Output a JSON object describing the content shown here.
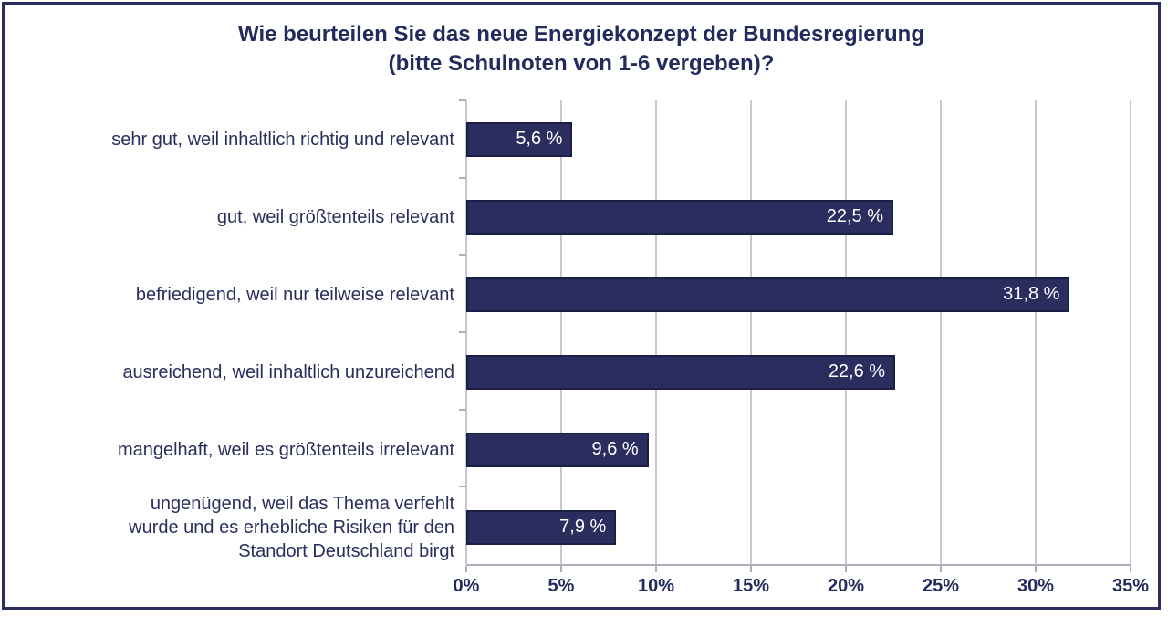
{
  "frame": {
    "border_color": "#2A2D5E",
    "background": "#FFFFFF"
  },
  "chart_data": {
    "type": "bar",
    "orientation": "horizontal",
    "title": "Wie beurteilen Sie das neue Energiekonzept der Bundesregierung (bitte Schulnoten von 1-6 vergeben)?",
    "title_lines": [
      "Wie beurteilen Sie das neue Energiekonzept der Bundesregierung",
      "(bitte Schulnoten von 1-6 vergeben)?"
    ],
    "categories": [
      "sehr gut, weil inhaltlich richtig und relevant",
      "gut, weil größtenteils relevant",
      "befriedigend, weil nur teilweise relevant",
      "ausreichend, weil inhaltlich unzureichend",
      "mangelhaft, weil es größtenteils irrelevant",
      "ungenügend, weil das Thema verfehlt\nwurde und es erhebliche Risiken für den\nStandort Deutschland birgt"
    ],
    "values": [
      5.6,
      22.5,
      31.8,
      22.6,
      9.6,
      7.9
    ],
    "value_labels": [
      "5,6 %",
      "22,5 %",
      "31,8 %",
      "22,6 %",
      "9,6 %",
      "7,9 %"
    ],
    "xlabel": "",
    "ylabel": "",
    "xlim": [
      0,
      35
    ],
    "x_tick_values": [
      0,
      5,
      10,
      15,
      20,
      25,
      30,
      35
    ],
    "x_ticks": [
      "0%",
      "5%",
      "10%",
      "15%",
      "20%",
      "25%",
      "30%",
      "35%"
    ],
    "grid": true,
    "legend": false,
    "colors": {
      "bar": "#2B2D5F",
      "bar_border": "#1C1F45",
      "text": "#232B5C",
      "grid": "#C7C7D1",
      "axis": "#AFAFBB",
      "value_label": "#FFFFFF",
      "background": "#FFFFFF"
    }
  }
}
